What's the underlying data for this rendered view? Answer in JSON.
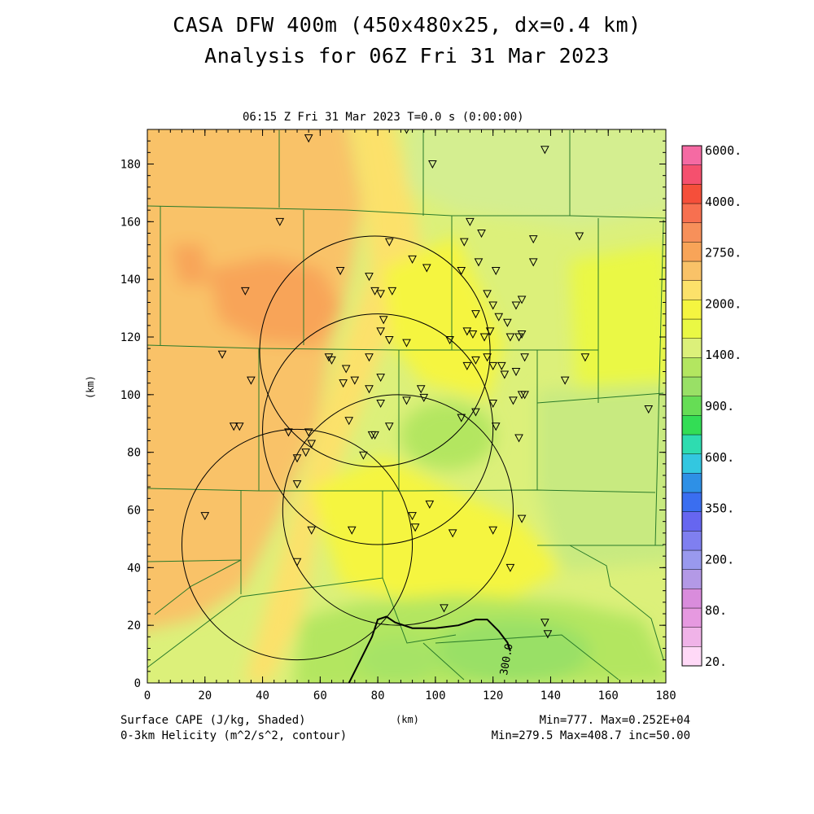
{
  "header": {
    "title_line1": "CASA DFW 400m (450x480x25, dx=0.4 km)",
    "title_line2": "Analysis for 06Z Fri 31 Mar 2023",
    "subtitle": "06:15 Z Fri 31 Mar 2023    T=0.0 s (0:00:00)"
  },
  "footer": {
    "field1": "Surface CAPE (J/kg, Shaded)",
    "field2": "0-3km Helicity (m^2/s^2, contour)",
    "xunit": "(km)",
    "stats1": "Min=777. Max=0.252E+04",
    "stats2": "Min=279.5 Max=408.7 inc=50.00"
  },
  "colors": {
    "levels": [
      "#ffd9f7",
      "#f0b3e8",
      "#e699e0",
      "#d98cdc",
      "#b399e6",
      "#9999ee",
      "#7f7ff0",
      "#6666f0",
      "#3a6ef0",
      "#2e90e6",
      "#33c7e0",
      "#2edcb0",
      "#33dd55",
      "#66dd55",
      "#99e066",
      "#b3e660",
      "#dcf07a",
      "#eaf844",
      "#f5f540",
      "#fce16a",
      "#f9c268",
      "#f8a458",
      "#f7905a",
      "#f77050",
      "#f54f3a",
      "#f5506e",
      "#f56aa3"
    ],
    "contour": "#000000",
    "map_lines": "#2a7a2a"
  },
  "chart_data": {
    "type": "heatmap",
    "x_label": "(km)",
    "y_label": "(km)",
    "xlim": [
      0,
      180
    ],
    "ylim": [
      0,
      192
    ],
    "x_ticks": [
      0,
      20,
      40,
      60,
      80,
      100,
      120,
      140,
      160,
      180
    ],
    "y_ticks": [
      0,
      20,
      40,
      60,
      80,
      100,
      120,
      140,
      160,
      180
    ],
    "colorbar_labels": [
      "6000.",
      "4000.",
      "2750.",
      "2000.",
      "1400.",
      "900.",
      "600.",
      "350.",
      "200.",
      "80.",
      "20."
    ],
    "contour_label": "300.0",
    "contour_path": [
      [
        70,
        0
      ],
      [
        74,
        8
      ],
      [
        78,
        16
      ],
      [
        80,
        22
      ],
      [
        83,
        23
      ],
      [
        86,
        21
      ],
      [
        92,
        19
      ],
      [
        100,
        19
      ],
      [
        108,
        20
      ],
      [
        114,
        22
      ],
      [
        118,
        22
      ],
      [
        122,
        18
      ],
      [
        125,
        14
      ],
      [
        126,
        11
      ]
    ],
    "radar_circles": [
      {
        "cx": 79,
        "cy": 115,
        "r": 40
      },
      {
        "cx": 80,
        "cy": 88,
        "r": 40
      },
      {
        "cx": 52,
        "cy": 48,
        "r": 40
      },
      {
        "cx": 87,
        "cy": 60,
        "r": 40
      }
    ],
    "stations": [
      [
        56,
        189
      ],
      [
        90,
        192
      ],
      [
        99,
        180
      ],
      [
        138,
        185
      ],
      [
        46,
        160
      ],
      [
        84,
        153
      ],
      [
        112,
        160
      ],
      [
        116,
        156
      ],
      [
        110,
        153
      ],
      [
        134,
        154
      ],
      [
        67,
        143
      ],
      [
        77,
        141
      ],
      [
        79,
        136
      ],
      [
        81,
        135
      ],
      [
        85,
        136
      ],
      [
        92,
        147
      ],
      [
        97,
        144
      ],
      [
        109,
        143
      ],
      [
        115,
        146
      ],
      [
        121,
        143
      ],
      [
        134,
        146
      ],
      [
        34,
        136
      ],
      [
        114,
        128
      ],
      [
        122,
        127
      ],
      [
        125,
        125
      ],
      [
        128,
        131
      ],
      [
        130,
        133
      ],
      [
        118,
        135
      ],
      [
        120,
        131
      ],
      [
        82,
        126
      ],
      [
        81,
        122
      ],
      [
        84,
        119
      ],
      [
        90,
        118
      ],
      [
        105,
        119
      ],
      [
        111,
        122
      ],
      [
        113,
        121
      ],
      [
        117,
        120
      ],
      [
        119,
        122
      ],
      [
        126,
        120
      ],
      [
        129,
        120
      ],
      [
        130,
        121
      ],
      [
        26,
        114
      ],
      [
        63,
        113
      ],
      [
        64,
        112
      ],
      [
        77,
        113
      ],
      [
        111,
        110
      ],
      [
        114,
        112
      ],
      [
        118,
        113
      ],
      [
        120,
        110
      ],
      [
        123,
        110
      ],
      [
        124,
        107
      ],
      [
        128,
        108
      ],
      [
        131,
        113
      ],
      [
        152,
        113
      ],
      [
        36,
        105
      ],
      [
        68,
        104
      ],
      [
        69,
        109
      ],
      [
        72,
        105
      ],
      [
        77,
        102
      ],
      [
        81,
        106
      ],
      [
        95,
        102
      ],
      [
        96,
        99
      ],
      [
        90,
        98
      ],
      [
        81,
        97
      ],
      [
        114,
        94
      ],
      [
        109,
        92
      ],
      [
        120,
        97
      ],
      [
        127,
        98
      ],
      [
        130,
        100
      ],
      [
        131,
        100
      ],
      [
        174,
        95
      ],
      [
        145,
        105
      ],
      [
        150,
        155
      ],
      [
        30,
        89
      ],
      [
        32,
        89
      ],
      [
        49,
        87
      ],
      [
        56,
        87
      ],
      [
        57,
        83
      ],
      [
        55,
        80
      ],
      [
        52,
        78
      ],
      [
        70,
        91
      ],
      [
        78,
        86
      ],
      [
        79,
        86
      ],
      [
        84,
        89
      ],
      [
        75,
        79
      ],
      [
        121,
        89
      ],
      [
        129,
        85
      ],
      [
        52,
        69
      ],
      [
        20,
        58
      ],
      [
        57,
        53
      ],
      [
        71,
        53
      ],
      [
        92,
        58
      ],
      [
        93,
        54
      ],
      [
        98,
        62
      ],
      [
        106,
        52
      ],
      [
        120,
        53
      ],
      [
        130,
        57
      ],
      [
        52,
        42
      ],
      [
        126,
        40
      ],
      [
        103,
        26
      ],
      [
        138,
        21
      ],
      [
        139,
        17
      ]
    ]
  }
}
